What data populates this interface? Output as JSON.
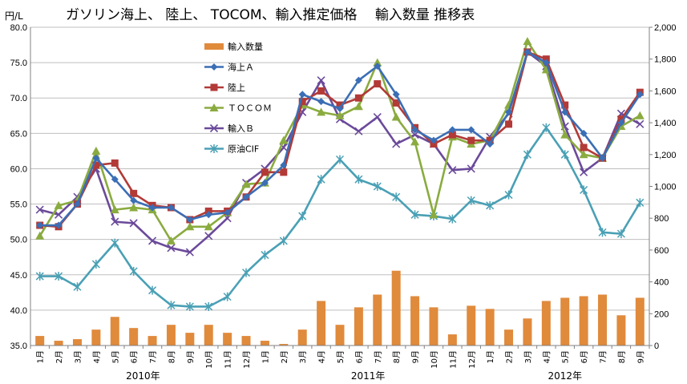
{
  "chart_data": {
    "type": "bar+line",
    "title": "ガソリン海上、 陸上、 TOCOM、輸入推定価格　 輸入数量 推移表",
    "ylabel_left": "円/L",
    "left_ylim": [
      35,
      80
    ],
    "left_ticks": [
      "35.0",
      "40.0",
      "45.0",
      "50.0",
      "55.0",
      "60.0",
      "65.0",
      "70.0",
      "75.0",
      "80.0"
    ],
    "right_ylim": [
      0,
      2000
    ],
    "right_ticks": [
      "0",
      "200",
      "400",
      "600",
      "800",
      "1,000",
      "1,200",
      "1,400",
      "1,600",
      "1,800",
      "2,000"
    ],
    "grid": true,
    "legend_position": "top-center",
    "categories": [
      "1月",
      "2月",
      "3月",
      "4月",
      "5月",
      "6月",
      "7月",
      "8月",
      "9月",
      "10月",
      "11月",
      "12月",
      "1月",
      "2月",
      "3月",
      "4月",
      "5月",
      "6月",
      "7月",
      "8月",
      "9月",
      "10月",
      "11月",
      "12月",
      "1月",
      "2月",
      "3月",
      "4月",
      "5月",
      "6月",
      "7月",
      "8月",
      "9月"
    ],
    "year_labels": [
      {
        "label": "2010年",
        "start": 0,
        "end": 11
      },
      {
        "label": "2011年",
        "start": 12,
        "end": 23
      },
      {
        "label": "2012年",
        "start": 24,
        "end": 32
      }
    ],
    "series": [
      {
        "name": "輸入数量",
        "type": "bar",
        "axis": "right",
        "color": "#e08a3c",
        "values": [
          60,
          30,
          40,
          100,
          180,
          110,
          60,
          130,
          80,
          130,
          80,
          60,
          30,
          10,
          100,
          280,
          130,
          240,
          320,
          470,
          310,
          240,
          70,
          250,
          230,
          100,
          170,
          280,
          300,
          310,
          320,
          190,
          300
        ]
      },
      {
        "name": "海上Ａ",
        "type": "line",
        "axis": "left",
        "color": "#3b6eb5",
        "marker": "diamond",
        "values": [
          52.0,
          52.0,
          55.0,
          61.5,
          58.5,
          55.5,
          54.5,
          54.5,
          52.8,
          53.5,
          53.8,
          56.0,
          58.0,
          60.5,
          70.5,
          69.5,
          68.5,
          72.5,
          74.5,
          70.5,
          65.5,
          64.0,
          65.5,
          65.5,
          63.5,
          68.0,
          76.5,
          75.0,
          68.0,
          65.0,
          61.5,
          66.5,
          70.5
        ]
      },
      {
        "name": "陸上",
        "type": "line",
        "axis": "left",
        "color": "#b23a37",
        "marker": "square",
        "values": [
          52.0,
          51.8,
          55.0,
          60.5,
          60.8,
          56.5,
          54.8,
          54.5,
          52.8,
          54.0,
          54.0,
          56.0,
          59.5,
          59.5,
          69.5,
          71.0,
          69.0,
          70.0,
          72.0,
          69.3,
          65.8,
          63.5,
          64.8,
          64.0,
          64.0,
          66.3,
          76.5,
          75.5,
          69.0,
          63.0,
          61.5,
          67.0,
          70.8
        ]
      },
      {
        "name": "ＴＯＣＯＭ",
        "type": "line",
        "axis": "left",
        "color": "#8aab3f",
        "marker": "triangle",
        "values": [
          50.5,
          54.8,
          55.5,
          62.5,
          54.2,
          54.5,
          54.2,
          49.8,
          51.8,
          51.8,
          53.8,
          57.8,
          58.0,
          64.0,
          69.0,
          68.0,
          67.5,
          68.8,
          75.0,
          67.3,
          63.8,
          53.5,
          64.5,
          63.5,
          64.0,
          69.0,
          78.0,
          74.0,
          64.8,
          62.0,
          61.5,
          66.0,
          67.5
        ]
      },
      {
        "name": "輸入Ｂ",
        "type": "line",
        "axis": "left",
        "color": "#6b4a9a",
        "marker": "x",
        "values": [
          54.2,
          53.5,
          56.0,
          60.0,
          52.5,
          52.3,
          49.8,
          48.8,
          48.2,
          50.5,
          53.0,
          58.0,
          60.0,
          63.0,
          68.0,
          72.5,
          67.0,
          65.3,
          67.3,
          63.5,
          64.8,
          63.5,
          59.8,
          60.0,
          64.5,
          67.8,
          76.5,
          74.5,
          66.0,
          59.5,
          61.5,
          67.8,
          66.3
        ]
      },
      {
        "name": "原油CIF",
        "type": "line",
        "axis": "left",
        "color": "#4aa0b5",
        "marker": "star",
        "values": [
          44.8,
          44.8,
          43.3,
          46.5,
          49.5,
          45.5,
          42.8,
          40.7,
          40.5,
          40.5,
          41.9,
          45.3,
          47.8,
          49.8,
          53.3,
          58.5,
          61.3,
          58.5,
          57.5,
          56.0,
          53.5,
          53.3,
          52.9,
          55.5,
          54.8,
          56.3,
          62.0,
          65.8,
          62.0,
          57.0,
          51.0,
          50.8,
          55.2
        ]
      }
    ]
  }
}
